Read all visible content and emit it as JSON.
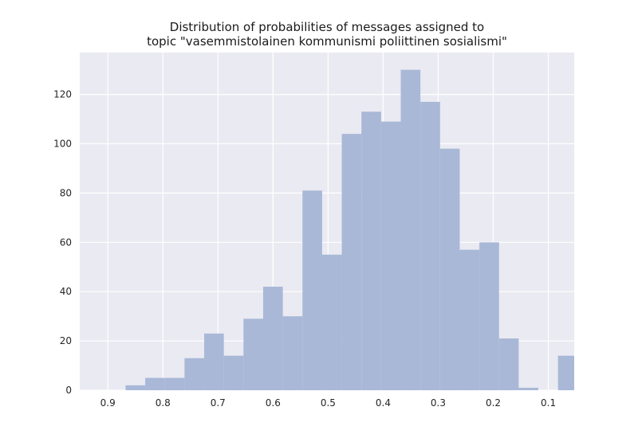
{
  "chart_data": {
    "type": "bar",
    "subtype": "histogram",
    "title_lines": [
      "Distribution of probabilities of messages assigned to",
      "topic \"vasemmistolainen kommunismi poliittinen sosialismi\""
    ],
    "xlabel": "",
    "ylabel": "",
    "x_axis_inverted": true,
    "xlim": [
      0.951,
      0.053
    ],
    "ylim": [
      0,
      137
    ],
    "x_ticks": [
      0.9,
      0.8,
      0.7,
      0.6,
      0.5,
      0.4,
      0.3,
      0.2,
      0.1
    ],
    "x_tick_labels": [
      "0.9",
      "0.8",
      "0.7",
      "0.6",
      "0.5",
      "0.4",
      "0.3",
      "0.2",
      "0.1"
    ],
    "y_ticks": [
      0,
      20,
      40,
      60,
      80,
      100,
      120
    ],
    "y_tick_labels": [
      "0",
      "20",
      "40",
      "60",
      "80",
      "100",
      "120"
    ],
    "grid": true,
    "bin_width": 0.0357,
    "bins": [
      {
        "left": 0.8321,
        "right": 0.8678,
        "value": 2
      },
      {
        "left": 0.7964,
        "right": 0.8321,
        "value": 5
      },
      {
        "left": 0.7607,
        "right": 0.7964,
        "value": 5
      },
      {
        "left": 0.725,
        "right": 0.7607,
        "value": 13
      },
      {
        "left": 0.6893,
        "right": 0.725,
        "value": 23
      },
      {
        "left": 0.6536,
        "right": 0.6893,
        "value": 14
      },
      {
        "left": 0.6179,
        "right": 0.6536,
        "value": 29
      },
      {
        "left": 0.5822,
        "right": 0.6179,
        "value": 42
      },
      {
        "left": 0.5465,
        "right": 0.5822,
        "value": 30
      },
      {
        "left": 0.5108,
        "right": 0.5465,
        "value": 81
      },
      {
        "left": 0.4751,
        "right": 0.5108,
        "value": 55
      },
      {
        "left": 0.4394,
        "right": 0.4751,
        "value": 104
      },
      {
        "left": 0.4037,
        "right": 0.4394,
        "value": 113
      },
      {
        "left": 0.368,
        "right": 0.4037,
        "value": 109
      },
      {
        "left": 0.3323,
        "right": 0.368,
        "value": 130
      },
      {
        "left": 0.2966,
        "right": 0.3323,
        "value": 117
      },
      {
        "left": 0.2609,
        "right": 0.2966,
        "value": 98
      },
      {
        "left": 0.2252,
        "right": 0.2609,
        "value": 57
      },
      {
        "left": 0.1895,
        "right": 0.2252,
        "value": 60
      },
      {
        "left": 0.1538,
        "right": 0.1895,
        "value": 21
      },
      {
        "left": 0.1181,
        "right": 0.1538,
        "value": 1
      },
      {
        "left": 0.0824,
        "right": 0.1181,
        "value": 0
      },
      {
        "left": 0.0467,
        "right": 0.0824,
        "value": 14
      }
    ],
    "colors": {
      "bar": "#a9b8d7",
      "plot_background": "#eaeaf2",
      "grid": "#ffffff"
    }
  }
}
